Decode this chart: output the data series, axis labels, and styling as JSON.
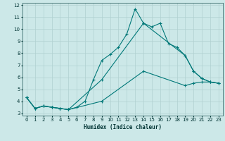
{
  "xlabel": "Humidex (Indice chaleur)",
  "bg_color": "#cce8e8",
  "grid_color": "#b0d0d0",
  "line_color": "#007878",
  "xlim": [
    -0.5,
    23.5
  ],
  "ylim": [
    2.8,
    12.2
  ],
  "xticks": [
    0,
    1,
    2,
    3,
    4,
    5,
    6,
    7,
    8,
    9,
    10,
    11,
    12,
    13,
    14,
    15,
    16,
    17,
    18,
    19,
    20,
    21,
    22,
    23
  ],
  "yticks": [
    3,
    4,
    5,
    6,
    7,
    8,
    9,
    10,
    11,
    12
  ],
  "line1_x": [
    0,
    1,
    2,
    3,
    4,
    5,
    6,
    7,
    8,
    9,
    10,
    11,
    12,
    13,
    14,
    15,
    16,
    17,
    18,
    19,
    20,
    21,
    22,
    23
  ],
  "line1_y": [
    4.3,
    3.4,
    3.6,
    3.5,
    3.4,
    3.3,
    3.5,
    4.0,
    5.8,
    7.4,
    7.9,
    8.5,
    9.6,
    11.7,
    10.5,
    10.2,
    10.5,
    8.8,
    8.5,
    7.8,
    6.5,
    5.9,
    5.6,
    5.5
  ],
  "line2_x": [
    0,
    1,
    2,
    3,
    4,
    5,
    9,
    14,
    19,
    20,
    21,
    22,
    23
  ],
  "line2_y": [
    4.3,
    3.4,
    3.6,
    3.5,
    3.4,
    3.3,
    5.8,
    10.5,
    7.8,
    6.5,
    5.9,
    5.6,
    5.5
  ],
  "line3_x": [
    0,
    1,
    2,
    3,
    4,
    5,
    9,
    14,
    19,
    20,
    21,
    22,
    23
  ],
  "line3_y": [
    4.3,
    3.4,
    3.6,
    3.5,
    3.4,
    3.3,
    4.0,
    6.5,
    5.3,
    5.5,
    5.6,
    5.6,
    5.5
  ]
}
